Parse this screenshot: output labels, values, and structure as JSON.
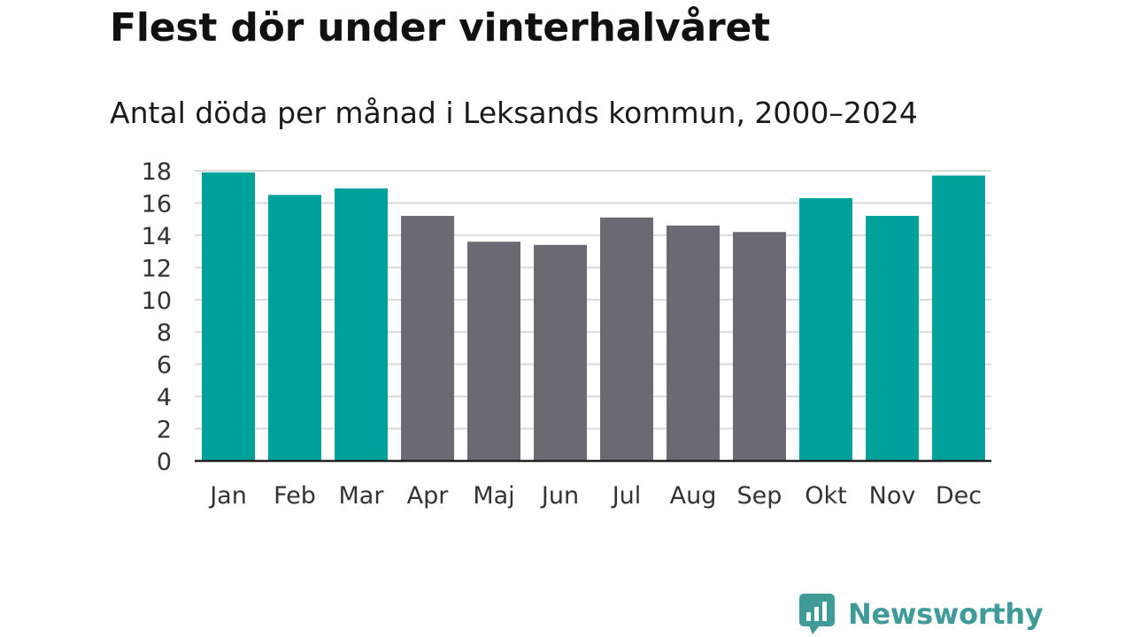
{
  "colors": {
    "winter": "#00A19A",
    "summer": "#6B6A72",
    "grid": "#d9d9d9",
    "axis": "#222222",
    "brand": "#3f9a98"
  },
  "chart_data": {
    "type": "bar",
    "title": "Flest dör under vinterhalvåret",
    "subtitle": "Antal döda per månad i Leksands kommun, 2000–2024",
    "xlabel": "",
    "ylabel": "",
    "ylim": [
      0,
      18
    ],
    "yticks": [
      0,
      2,
      4,
      6,
      8,
      10,
      12,
      14,
      16,
      18
    ],
    "grid": true,
    "categories": [
      "Jan",
      "Feb",
      "Mar",
      "Apr",
      "Maj",
      "Jun",
      "Jul",
      "Aug",
      "Sep",
      "Okt",
      "Nov",
      "Dec"
    ],
    "values": [
      17.9,
      16.5,
      16.9,
      15.2,
      13.6,
      13.4,
      15.1,
      14.6,
      14.2,
      16.3,
      15.2,
      17.7
    ],
    "groups": [
      "winter",
      "winter",
      "winter",
      "summer",
      "summer",
      "summer",
      "summer",
      "summer",
      "summer",
      "winter",
      "winter",
      "winter"
    ]
  },
  "brand": {
    "name": "Newsworthy",
    "logo_icon": "chart-bubble-icon"
  }
}
